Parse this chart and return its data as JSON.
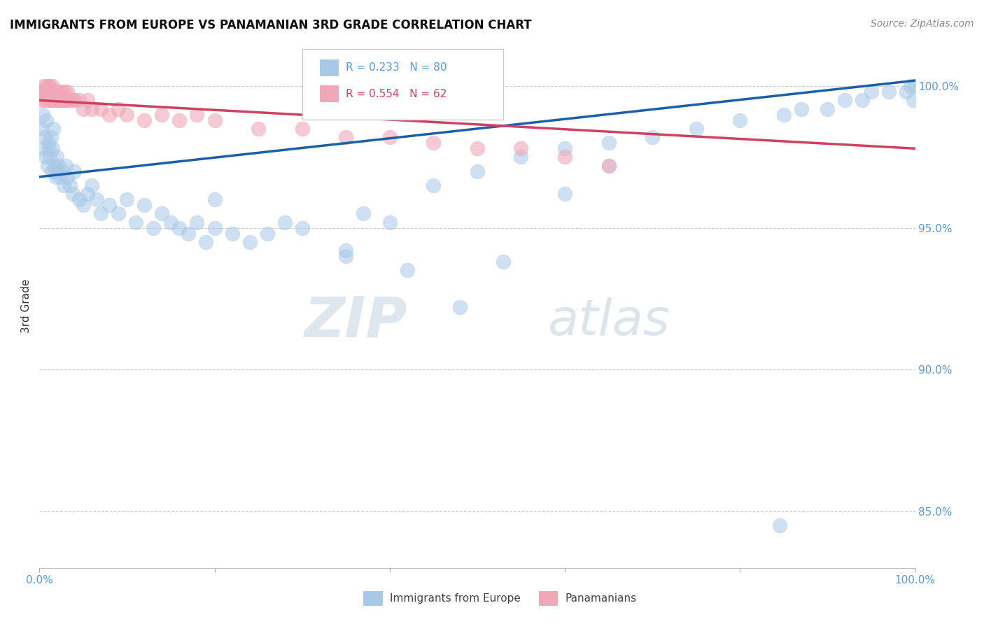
{
  "title": "IMMIGRANTS FROM EUROPE VS PANAMANIAN 3RD GRADE CORRELATION CHART",
  "source": "Source: ZipAtlas.com",
  "ylabel": "3rd Grade",
  "ylim": [
    83.0,
    101.5
  ],
  "xlim": [
    0.0,
    100.0
  ],
  "blue_R": 0.233,
  "blue_N": 80,
  "pink_R": 0.554,
  "pink_N": 62,
  "blue_color": "#a8c8e8",
  "pink_color": "#f0a8b8",
  "blue_line_color": "#1a5fa8",
  "pink_line_color": "#d04060",
  "legend_label_blue": "Immigrants from Europe",
  "legend_label_pink": "Panamanians",
  "blue_line_y0": 96.8,
  "blue_line_y1": 100.2,
  "pink_line_y0": 99.5,
  "pink_line_y1": 97.8,
  "blue_scatter_x": [
    0.3,
    0.4,
    0.5,
    0.6,
    0.7,
    0.8,
    0.9,
    1.0,
    1.1,
    1.2,
    1.3,
    1.4,
    1.5,
    1.6,
    1.7,
    1.8,
    1.9,
    2.0,
    2.2,
    2.4,
    2.6,
    2.8,
    3.0,
    3.2,
    3.5,
    3.8,
    4.0,
    4.5,
    5.0,
    5.5,
    6.0,
    6.5,
    7.0,
    8.0,
    9.0,
    10.0,
    11.0,
    12.0,
    13.0,
    14.0,
    15.0,
    16.0,
    17.0,
    18.0,
    19.0,
    20.0,
    22.0,
    24.0,
    26.0,
    28.0,
    30.0,
    35.0,
    37.0,
    40.0,
    45.0,
    50.0,
    55.0,
    60.0,
    65.0,
    70.0,
    75.0,
    80.0,
    85.0,
    87.0,
    90.0,
    92.0,
    94.0,
    95.0,
    97.0,
    99.0,
    99.5,
    99.8,
    100.0,
    60.0,
    65.0,
    35.0,
    42.0,
    48.0,
    53.0,
    20.0
  ],
  "blue_scatter_y": [
    98.5,
    99.0,
    97.8,
    98.2,
    97.5,
    98.8,
    97.2,
    98.0,
    97.8,
    97.5,
    98.2,
    97.0,
    97.8,
    98.5,
    97.2,
    97.0,
    96.8,
    97.5,
    97.2,
    96.8,
    97.0,
    96.5,
    97.2,
    96.8,
    96.5,
    96.2,
    97.0,
    96.0,
    95.8,
    96.2,
    96.5,
    96.0,
    95.5,
    95.8,
    95.5,
    96.0,
    95.2,
    95.8,
    95.0,
    95.5,
    95.2,
    95.0,
    94.8,
    95.2,
    94.5,
    95.0,
    94.8,
    94.5,
    94.8,
    95.2,
    95.0,
    94.2,
    95.5,
    95.2,
    96.5,
    97.0,
    97.5,
    97.8,
    98.0,
    98.2,
    98.5,
    98.8,
    99.0,
    99.2,
    99.2,
    99.5,
    99.5,
    99.8,
    99.8,
    99.8,
    100.0,
    99.5,
    100.0,
    96.2,
    97.2,
    94.0,
    93.5,
    92.2,
    93.8,
    96.0
  ],
  "pink_scatter_x": [
    0.2,
    0.3,
    0.4,
    0.5,
    0.5,
    0.6,
    0.7,
    0.8,
    0.8,
    0.9,
    1.0,
    1.0,
    1.1,
    1.2,
    1.2,
    1.3,
    1.4,
    1.5,
    1.5,
    1.6,
    1.7,
    1.8,
    1.9,
    2.0,
    2.0,
    2.1,
    2.2,
    2.3,
    2.4,
    2.5,
    2.6,
    2.7,
    2.8,
    2.9,
    3.0,
    3.1,
    3.2,
    3.5,
    3.8,
    4.0,
    4.5,
    5.0,
    5.5,
    6.0,
    7.0,
    8.0,
    9.0,
    10.0,
    12.0,
    14.0,
    16.0,
    18.0,
    20.0,
    25.0,
    30.0,
    35.0,
    40.0,
    45.0,
    50.0,
    55.0,
    60.0,
    65.0
  ],
  "pink_scatter_y": [
    99.8,
    99.5,
    99.8,
    99.8,
    100.0,
    99.5,
    99.8,
    99.8,
    100.0,
    99.5,
    99.8,
    100.0,
    99.5,
    99.8,
    100.0,
    99.5,
    99.8,
    99.8,
    100.0,
    99.5,
    99.8,
    99.5,
    99.8,
    99.5,
    99.8,
    99.5,
    99.8,
    99.5,
    99.8,
    99.5,
    99.8,
    99.5,
    99.5,
    99.8,
    99.5,
    99.5,
    99.8,
    99.5,
    99.5,
    99.5,
    99.5,
    99.2,
    99.5,
    99.2,
    99.2,
    99.0,
    99.2,
    99.0,
    98.8,
    99.0,
    98.8,
    99.0,
    98.8,
    98.5,
    98.5,
    98.2,
    98.2,
    98.0,
    97.8,
    97.8,
    97.5,
    97.2
  ],
  "blue_outlier_x": 84.5,
  "blue_outlier_y": 84.5,
  "ytick_positions": [
    85.0,
    90.0,
    95.0,
    100.0
  ],
  "ytick_labels": [
    "85.0%",
    "90.0%",
    "95.0%",
    "100.0%"
  ],
  "xtick_positions": [
    0.0,
    20.0,
    40.0,
    60.0,
    80.0,
    100.0
  ],
  "watermark_zip": "ZIP",
  "watermark_atlas": "atlas",
  "background_color": "#ffffff",
  "grid_color": "#cccccc",
  "tick_label_color": "#5599dd"
}
